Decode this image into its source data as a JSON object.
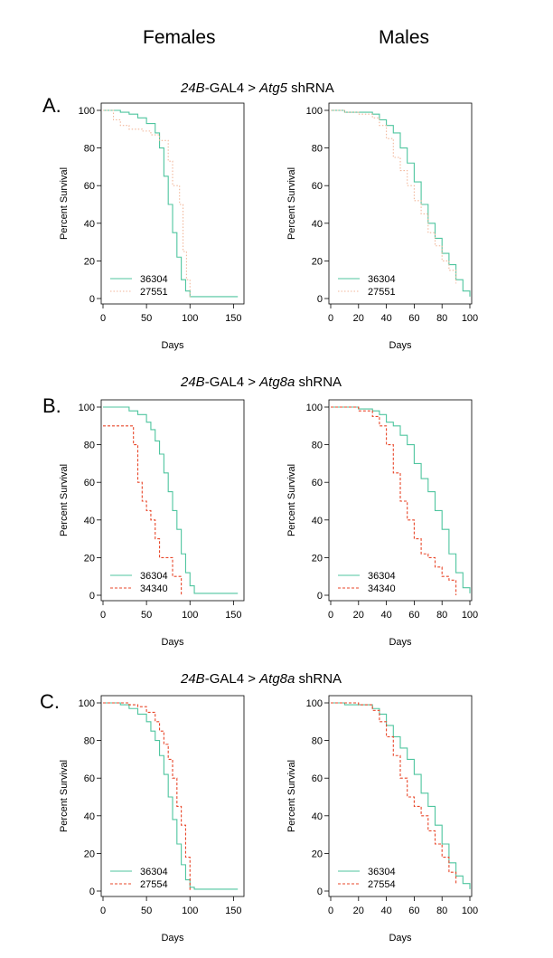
{
  "headers": {
    "females": "Females",
    "males": "Males"
  },
  "rows": [
    {
      "letter": "A.",
      "title_italic_1": "24B",
      "title_text_1": "-GAL4 > ",
      "title_italic_2": "Atg5",
      "title_text_2": " shRNA"
    },
    {
      "letter": "B.",
      "title_italic_1": "24B",
      "title_text_1": "-GAL4 > ",
      "title_italic_2": "Atg8a",
      "title_text_2": " shRNA"
    },
    {
      "letter": "C.",
      "title_italic_1": "24B",
      "title_text_1": "-GAL4 > ",
      "title_italic_2": "Atg8a",
      "title_text_2": " shRNA"
    }
  ],
  "colors": {
    "control": "#4fc59f",
    "knockdown": "#e8472a",
    "knockdown_light": "#f2b79b"
  },
  "chart_data": [
    {
      "type": "line",
      "panel": "A-females",
      "xlabel": "Days",
      "ylabel": "Percent Survival",
      "xlim": [
        0,
        160
      ],
      "ylim": [
        0,
        100
      ],
      "xticks": [
        0,
        50,
        100,
        150
      ],
      "yticks": [
        0,
        20,
        40,
        60,
        80,
        100
      ],
      "series": [
        {
          "name": "36304",
          "style": "solid",
          "x": [
            0,
            10,
            20,
            30,
            40,
            50,
            60,
            65,
            70,
            75,
            80,
            85,
            90,
            95,
            100,
            155
          ],
          "y": [
            100,
            100,
            99,
            98,
            96,
            93,
            88,
            80,
            65,
            50,
            35,
            22,
            10,
            4,
            1,
            1
          ]
        },
        {
          "name": "27551",
          "style": "dotted",
          "x": [
            0,
            12,
            20,
            30,
            45,
            55,
            65,
            75,
            80,
            88,
            92,
            96,
            100
          ],
          "y": [
            100,
            95,
            92,
            90,
            89,
            87,
            84,
            73,
            60,
            50,
            25,
            10,
            0
          ]
        }
      ]
    },
    {
      "type": "line",
      "panel": "A-males",
      "xlabel": "Days",
      "ylabel": "Percent Survival",
      "xlim": [
        0,
        100
      ],
      "ylim": [
        0,
        100
      ],
      "xticks": [
        0,
        20,
        40,
        60,
        80,
        100
      ],
      "yticks": [
        0,
        20,
        40,
        60,
        80,
        100
      ],
      "series": [
        {
          "name": "36304",
          "style": "solid",
          "x": [
            0,
            10,
            20,
            30,
            35,
            40,
            45,
            50,
            55,
            60,
            65,
            70,
            75,
            80,
            85,
            90,
            95,
            100
          ],
          "y": [
            100,
            99,
            99,
            98,
            95,
            92,
            88,
            80,
            72,
            62,
            50,
            40,
            32,
            24,
            18,
            10,
            4,
            1
          ]
        },
        {
          "name": "27551",
          "style": "dotted",
          "x": [
            0,
            10,
            20,
            30,
            35,
            40,
            45,
            50,
            55,
            60,
            65,
            70,
            75,
            80,
            85,
            90
          ],
          "y": [
            100,
            99,
            98,
            96,
            92,
            85,
            75,
            68,
            60,
            52,
            45,
            35,
            28,
            20,
            15,
            8
          ]
        }
      ]
    },
    {
      "type": "line",
      "panel": "B-females",
      "xlabel": "Days",
      "ylabel": "Percent Survival",
      "xlim": [
        0,
        160
      ],
      "ylim": [
        0,
        100
      ],
      "xticks": [
        0,
        50,
        100,
        150
      ],
      "yticks": [
        0,
        20,
        40,
        60,
        80,
        100
      ],
      "series": [
        {
          "name": "36304",
          "style": "solid",
          "x": [
            0,
            20,
            30,
            40,
            50,
            55,
            60,
            65,
            70,
            75,
            80,
            85,
            90,
            95,
            100,
            105,
            155
          ],
          "y": [
            100,
            100,
            98,
            96,
            92,
            88,
            82,
            75,
            65,
            55,
            45,
            35,
            22,
            12,
            5,
            1,
            1
          ]
        },
        {
          "name": "34340",
          "style": "dashed",
          "x": [
            0,
            10,
            20,
            30,
            35,
            40,
            45,
            50,
            55,
            60,
            65,
            70,
            75,
            80,
            85,
            90
          ],
          "y": [
            90,
            90,
            90,
            90,
            80,
            60,
            50,
            45,
            40,
            30,
            20,
            20,
            20,
            10,
            10,
            0
          ]
        }
      ]
    },
    {
      "type": "line",
      "panel": "B-males",
      "xlabel": "Days",
      "ylabel": "Percent Survival",
      "xlim": [
        0,
        100
      ],
      "ylim": [
        0,
        100
      ],
      "xticks": [
        0,
        20,
        40,
        60,
        80,
        100
      ],
      "yticks": [
        0,
        20,
        40,
        60,
        80,
        100
      ],
      "series": [
        {
          "name": "36304",
          "style": "solid",
          "x": [
            0,
            10,
            20,
            30,
            35,
            40,
            45,
            50,
            55,
            60,
            65,
            70,
            75,
            80,
            85,
            90,
            95,
            100
          ],
          "y": [
            100,
            100,
            99,
            98,
            96,
            92,
            90,
            85,
            80,
            70,
            62,
            55,
            45,
            35,
            22,
            12,
            4,
            1
          ]
        },
        {
          "name": "34340",
          "style": "dashed",
          "x": [
            0,
            10,
            20,
            30,
            35,
            40,
            45,
            50,
            55,
            60,
            65,
            70,
            75,
            80,
            85,
            90
          ],
          "y": [
            100,
            100,
            98,
            95,
            90,
            80,
            65,
            50,
            40,
            30,
            22,
            20,
            15,
            10,
            8,
            0
          ]
        }
      ]
    },
    {
      "type": "line",
      "panel": "C-females",
      "xlabel": "Days",
      "ylabel": "Percent Survival",
      "xlim": [
        0,
        160
      ],
      "ylim": [
        0,
        100
      ],
      "xticks": [
        0,
        50,
        100,
        150
      ],
      "yticks": [
        0,
        20,
        40,
        60,
        80,
        100
      ],
      "series": [
        {
          "name": "36304",
          "style": "solid",
          "x": [
            0,
            10,
            20,
            30,
            40,
            50,
            55,
            60,
            65,
            70,
            75,
            80,
            85,
            90,
            95,
            100,
            105,
            155
          ],
          "y": [
            100,
            100,
            99,
            97,
            94,
            90,
            85,
            80,
            72,
            62,
            50,
            38,
            25,
            14,
            6,
            2,
            1,
            1
          ]
        },
        {
          "name": "27554",
          "style": "dashed",
          "x": [
            0,
            20,
            30,
            40,
            50,
            60,
            65,
            70,
            75,
            80,
            85,
            90,
            95,
            100
          ],
          "y": [
            100,
            100,
            99,
            98,
            95,
            90,
            85,
            78,
            70,
            60,
            45,
            35,
            18,
            0
          ]
        }
      ]
    },
    {
      "type": "line",
      "panel": "C-males",
      "xlabel": "Days",
      "ylabel": "Percent Survival",
      "xlim": [
        0,
        100
      ],
      "ylim": [
        0,
        100
      ],
      "xticks": [
        0,
        20,
        40,
        60,
        80,
        100
      ],
      "yticks": [
        0,
        20,
        40,
        60,
        80,
        100
      ],
      "series": [
        {
          "name": "36304",
          "style": "solid",
          "x": [
            0,
            10,
            20,
            30,
            35,
            40,
            45,
            50,
            55,
            60,
            65,
            70,
            75,
            80,
            85,
            90,
            95,
            100
          ],
          "y": [
            100,
            99,
            99,
            97,
            94,
            88,
            82,
            76,
            70,
            62,
            52,
            45,
            35,
            25,
            15,
            8,
            4,
            1
          ]
        },
        {
          "name": "27554",
          "style": "dashed",
          "x": [
            0,
            10,
            20,
            30,
            35,
            40,
            45,
            50,
            55,
            60,
            65,
            70,
            75,
            80,
            85,
            90
          ],
          "y": [
            100,
            100,
            99,
            96,
            90,
            82,
            72,
            60,
            50,
            45,
            40,
            32,
            25,
            18,
            10,
            4
          ]
        }
      ]
    }
  ]
}
